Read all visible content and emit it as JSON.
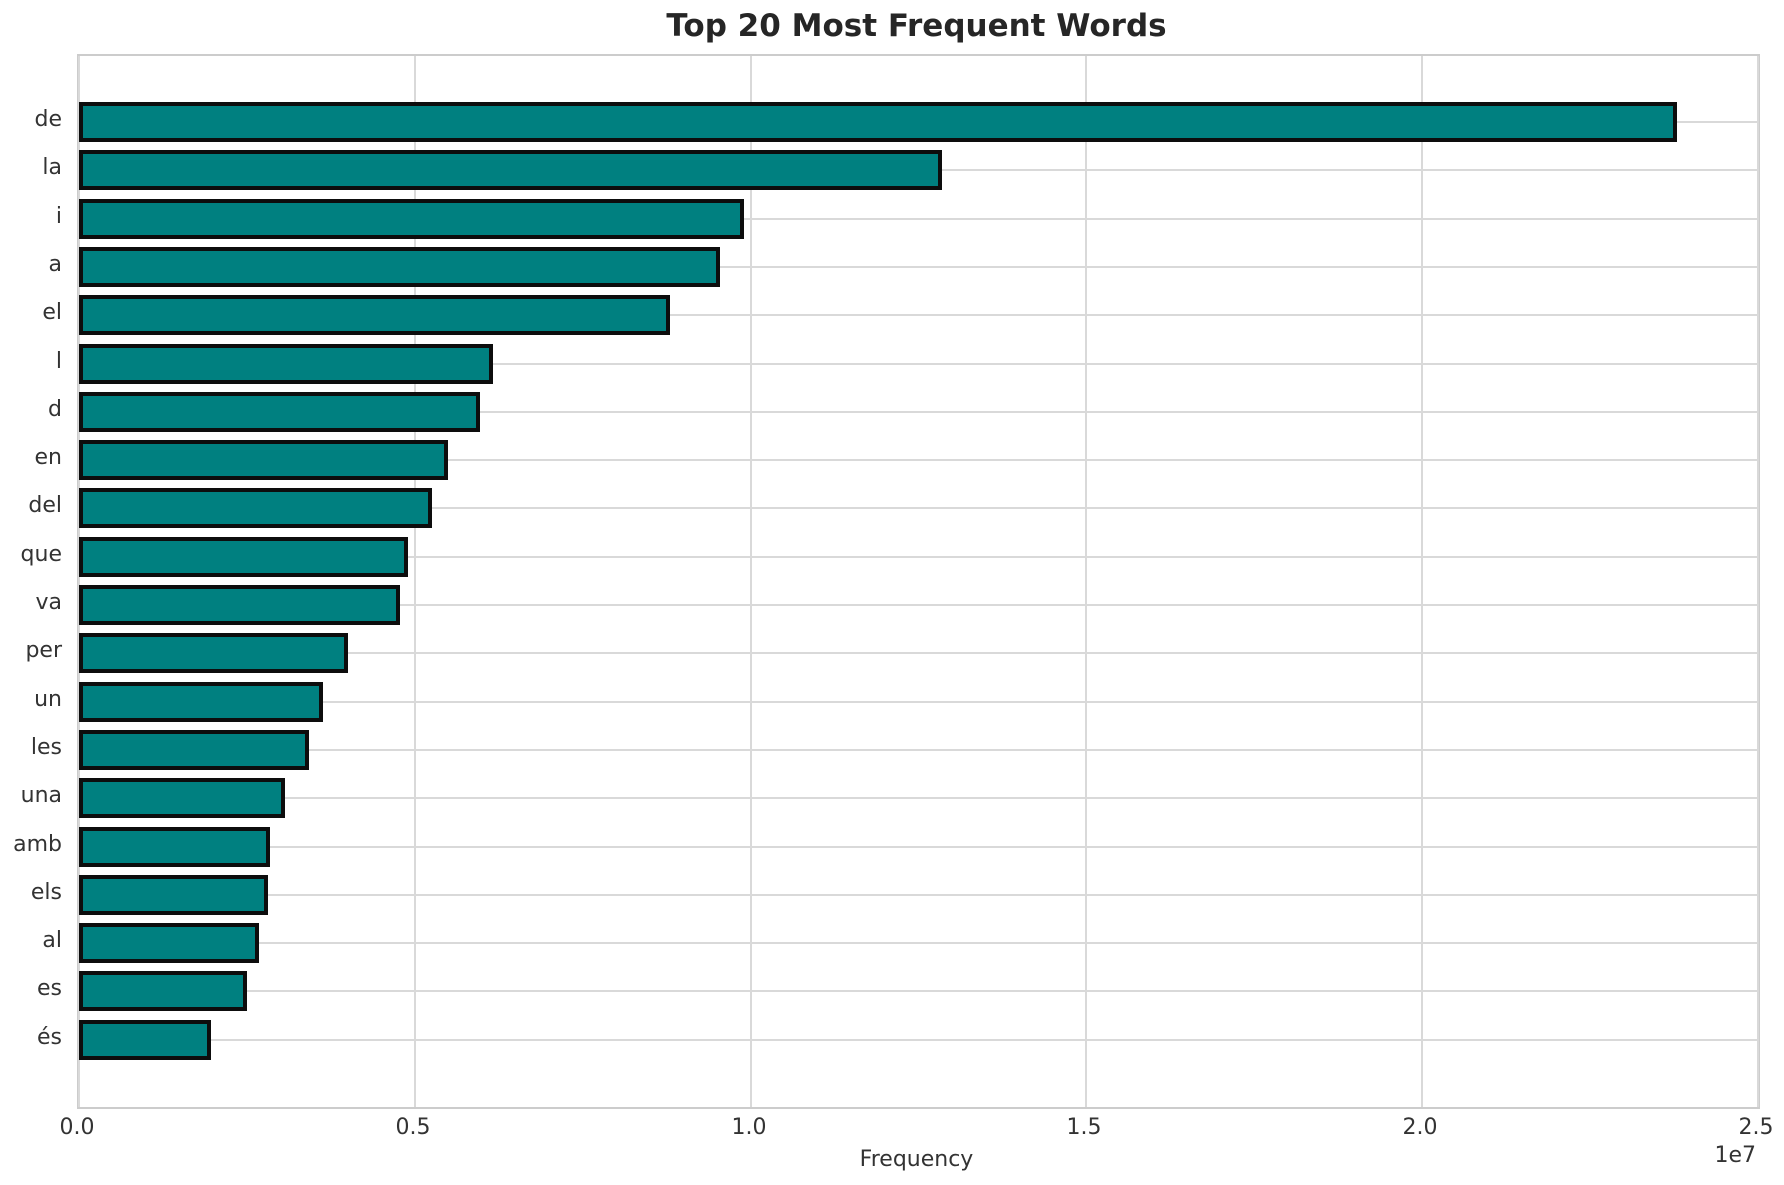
{
  "chart_data": {
    "type": "bar",
    "orientation": "horizontal",
    "title": "Top 20 Most Frequent Words",
    "xlabel": "Frequency",
    "ylabel": "",
    "categories": [
      "de",
      "la",
      "i",
      "a",
      "el",
      "l",
      "d",
      "en",
      "del",
      "que",
      "va",
      "per",
      "un",
      "les",
      "una",
      "amb",
      "els",
      "al",
      "es",
      "és"
    ],
    "values": [
      23800000,
      12850000,
      9900000,
      9550000,
      8800000,
      6170000,
      5970000,
      5500000,
      5250000,
      4900000,
      4780000,
      4000000,
      3630000,
      3430000,
      3070000,
      2850000,
      2810000,
      2680000,
      2500000,
      1970000
    ],
    "xlim": [
      0,
      25000000
    ],
    "x_tick_labels": [
      "0.0",
      "0.5",
      "1.0",
      "1.5",
      "2.0",
      "2.5"
    ],
    "x_offset_label": "1e7",
    "grid": true,
    "legend": "none",
    "bar_color": "#008080",
    "bar_edge_color": "#0d0d0d",
    "gridline_color": "#d9d9d9",
    "spine_color": "#cccccc",
    "text_color": "#333333",
    "title_color": "#262626"
  }
}
